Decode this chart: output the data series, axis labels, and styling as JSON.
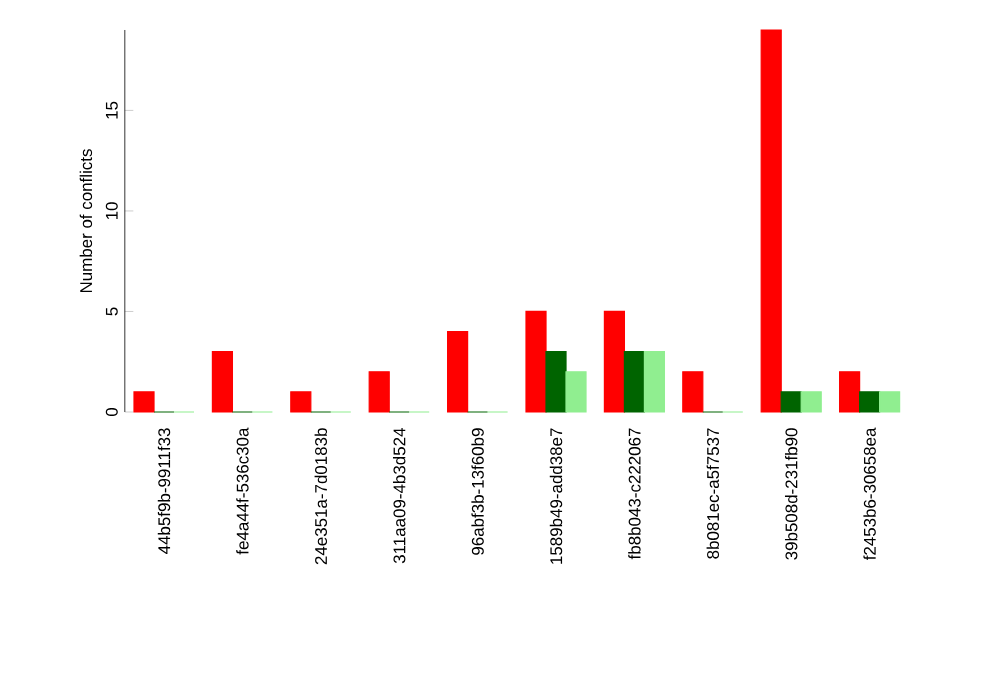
{
  "chart_data": {
    "type": "bar",
    "ylabel": "Number of conflicts",
    "categories": [
      "44b5f9b-9911f33",
      "fe4a44f-536c30a",
      "24e351a-7d0183b",
      "311aa09-4b3d524",
      "96abf3b-13f60b9",
      "1589b49-add38e7",
      "fb8b043-c222067",
      "8b081ec-a5f7537",
      "39b508d-231fb90",
      "f2453b6-30658ea"
    ],
    "series": [
      {
        "color": "#ff0000",
        "values": [
          1,
          3,
          1,
          2,
          4,
          5,
          5,
          2,
          19,
          2
        ]
      },
      {
        "color": "#006400",
        "values": [
          0,
          0,
          0,
          0,
          0,
          3,
          3,
          0,
          1,
          1
        ]
      },
      {
        "color": "#90ee90",
        "values": [
          0,
          0,
          0,
          0,
          0,
          2,
          3,
          0,
          1,
          1
        ]
      }
    ],
    "ylim": [
      0,
      19
    ],
    "yticks": [
      0,
      5,
      10,
      15
    ]
  }
}
